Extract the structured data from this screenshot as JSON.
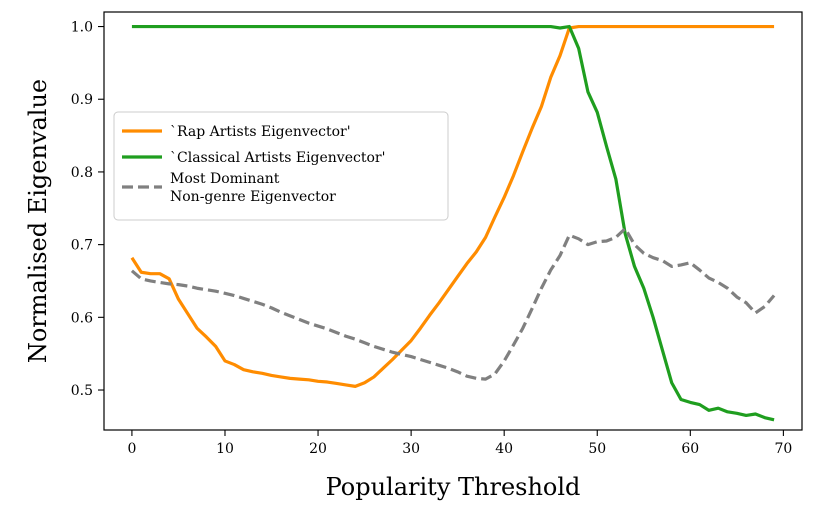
{
  "chart_data": {
    "type": "line",
    "xlabel": "Popularity Threshold",
    "ylabel": "Normalised Eigenvalue",
    "xlim": [
      -3,
      72
    ],
    "ylim": [
      0.445,
      1.02
    ],
    "xticks": [
      0,
      10,
      20,
      30,
      40,
      50,
      60,
      70
    ],
    "yticks": [
      0.5,
      0.6,
      0.7,
      0.8,
      0.9,
      1.0
    ],
    "ytick_labels": [
      "0.5",
      "0.6",
      "0.7",
      "0.8",
      "0.9",
      "1.0"
    ],
    "grid": false,
    "legend_position": "center-left",
    "series": [
      {
        "name": "`Rap Artists Eigenvector'",
        "color": "#ff8c00",
        "style": "solid",
        "x": [
          0,
          1,
          2,
          3,
          4,
          5,
          6,
          7,
          8,
          9,
          10,
          11,
          12,
          13,
          14,
          15,
          16,
          17,
          18,
          19,
          20,
          21,
          22,
          23,
          24,
          25,
          26,
          27,
          28,
          29,
          30,
          31,
          32,
          33,
          34,
          35,
          36,
          37,
          38,
          39,
          40,
          41,
          42,
          43,
          44,
          45,
          46,
          47,
          48,
          49,
          50,
          51,
          52,
          53,
          54,
          55,
          56,
          57,
          58,
          59,
          60,
          61,
          62,
          63,
          64,
          65,
          66,
          67,
          68,
          69
        ],
        "y": [
          0.682,
          0.662,
          0.66,
          0.66,
          0.653,
          0.625,
          0.605,
          0.585,
          0.573,
          0.56,
          0.54,
          0.535,
          0.528,
          0.525,
          0.523,
          0.52,
          0.518,
          0.516,
          0.515,
          0.514,
          0.512,
          0.511,
          0.509,
          0.507,
          0.505,
          0.51,
          0.518,
          0.53,
          0.542,
          0.555,
          0.568,
          0.585,
          0.603,
          0.62,
          0.638,
          0.656,
          0.674,
          0.69,
          0.71,
          0.738,
          0.765,
          0.795,
          0.828,
          0.86,
          0.89,
          0.93,
          0.96,
          0.998,
          1.0,
          1.0,
          1.0,
          1.0,
          1.0,
          1.0,
          1.0,
          1.0,
          1.0,
          1.0,
          1.0,
          1.0,
          1.0,
          1.0,
          1.0,
          1.0,
          1.0,
          1.0,
          1.0,
          1.0,
          1.0,
          1.0
        ]
      },
      {
        "name": "`Classical Artists Eigenvector'",
        "color": "#1f9e1f",
        "style": "solid",
        "x": [
          0,
          1,
          2,
          3,
          4,
          5,
          6,
          7,
          8,
          9,
          10,
          11,
          12,
          13,
          14,
          15,
          16,
          17,
          18,
          19,
          20,
          21,
          22,
          23,
          24,
          25,
          26,
          27,
          28,
          29,
          30,
          31,
          32,
          33,
          34,
          35,
          36,
          37,
          38,
          39,
          40,
          41,
          42,
          43,
          44,
          45,
          46,
          47,
          48,
          49,
          50,
          51,
          52,
          53,
          54,
          55,
          56,
          57,
          58,
          59,
          60,
          61,
          62,
          63,
          64,
          65,
          66,
          67,
          68,
          69
        ],
        "y": [
          1.0,
          1.0,
          1.0,
          1.0,
          1.0,
          1.0,
          1.0,
          1.0,
          1.0,
          1.0,
          1.0,
          1.0,
          1.0,
          1.0,
          1.0,
          1.0,
          1.0,
          1.0,
          1.0,
          1.0,
          1.0,
          1.0,
          1.0,
          1.0,
          1.0,
          1.0,
          1.0,
          1.0,
          1.0,
          1.0,
          1.0,
          1.0,
          1.0,
          1.0,
          1.0,
          1.0,
          1.0,
          1.0,
          1.0,
          1.0,
          1.0,
          1.0,
          1.0,
          1.0,
          1.0,
          1.0,
          0.998,
          1.0,
          0.97,
          0.91,
          0.882,
          0.835,
          0.79,
          0.715,
          0.67,
          0.64,
          0.6,
          0.555,
          0.51,
          0.487,
          0.483,
          0.48,
          0.472,
          0.475,
          0.47,
          0.468,
          0.465,
          0.467,
          0.462,
          0.459
        ]
      },
      {
        "name": "Most Dominant\nNon-genre Eigenvector",
        "color": "#808080",
        "style": "dashed",
        "x": [
          0,
          1,
          2,
          3,
          4,
          5,
          6,
          7,
          8,
          9,
          10,
          11,
          12,
          13,
          14,
          15,
          16,
          17,
          18,
          19,
          20,
          21,
          22,
          23,
          24,
          25,
          26,
          27,
          28,
          29,
          30,
          31,
          32,
          33,
          34,
          35,
          36,
          37,
          38,
          39,
          40,
          41,
          42,
          43,
          44,
          45,
          46,
          47,
          48,
          49,
          50,
          51,
          52,
          53,
          54,
          55,
          56,
          57,
          58,
          59,
          60,
          61,
          62,
          63,
          64,
          65,
          66,
          67,
          68,
          69
        ],
        "y": [
          0.664,
          0.653,
          0.65,
          0.648,
          0.646,
          0.645,
          0.643,
          0.64,
          0.638,
          0.636,
          0.633,
          0.63,
          0.626,
          0.622,
          0.618,
          0.613,
          0.607,
          0.602,
          0.597,
          0.592,
          0.588,
          0.584,
          0.579,
          0.574,
          0.57,
          0.565,
          0.56,
          0.556,
          0.552,
          0.549,
          0.546,
          0.542,
          0.538,
          0.534,
          0.53,
          0.525,
          0.519,
          0.516,
          0.515,
          0.522,
          0.54,
          0.562,
          0.585,
          0.612,
          0.64,
          0.665,
          0.685,
          0.713,
          0.708,
          0.7,
          0.704,
          0.705,
          0.71,
          0.722,
          0.7,
          0.688,
          0.682,
          0.678,
          0.67,
          0.672,
          0.675,
          0.665,
          0.654,
          0.648,
          0.64,
          0.628,
          0.62,
          0.606,
          0.615,
          0.63
        ]
      }
    ]
  }
}
